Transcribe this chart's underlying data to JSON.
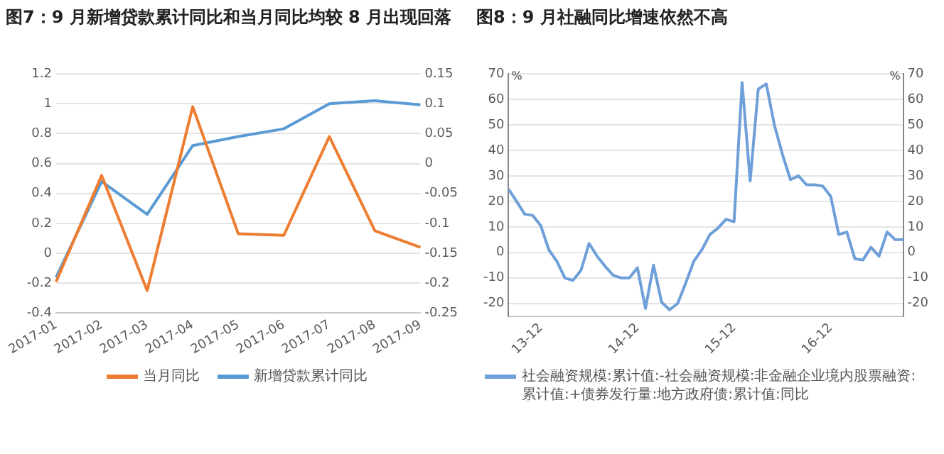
{
  "chart_data": [
    {
      "type": "line",
      "title": "图7：9 月新增贷款累计同比和当月同比均较 8 月出现回落",
      "categories": [
        "2017-01",
        "2017-02",
        "2017-03",
        "2017-04",
        "2017-05",
        "2017-06",
        "2017-07",
        "2017-08",
        "2017-09"
      ],
      "series": [
        {
          "name": "当月同比",
          "color": "#ed7d31",
          "values": [
            -0.19,
            0.52,
            -0.25,
            0.98,
            0.13,
            0.12,
            0.78,
            0.15,
            0.04
          ]
        },
        {
          "name": "新增贷款累计同比",
          "color": "#5b9bd5",
          "axis": "y2",
          "values": [
            -0.19,
            -0.03,
            -0.085,
            0.03,
            0.045,
            0.058,
            0.1,
            0.105,
            0.098
          ]
        }
      ],
      "ylim": [
        -0.4,
        1.2
      ],
      "yticks": [
        -0.4,
        -0.2,
        0,
        0.2,
        0.4,
        0.6,
        0.8,
        1,
        1.2
      ],
      "y2lim": [
        -0.25,
        0.15
      ],
      "y2ticks": [
        -0.25,
        -0.2,
        -0.15,
        -0.1,
        -0.05,
        0,
        0.05,
        0.1,
        0.15
      ],
      "grid": "y",
      "legend": "bottom",
      "marker": "none"
    },
    {
      "type": "line",
      "title": "图8：9 月社融同比增速依然不高",
      "ylabel": "%",
      "y2label": "%",
      "categories": [
        null,
        null,
        null,
        null,
        "13-12",
        null,
        null,
        null,
        null,
        null,
        null,
        null,
        null,
        null,
        null,
        null,
        "14-12",
        null,
        null,
        null,
        null,
        null,
        null,
        null,
        null,
        null,
        null,
        null,
        "15-12",
        null,
        null,
        null,
        null,
        null,
        null,
        null,
        null,
        null,
        null,
        null,
        "16-12",
        null,
        null,
        null,
        null,
        null,
        null,
        null,
        null,
        null
      ],
      "series": [
        {
          "name": "社会融资规模:累计值:-社会融资规模:非金融企业境内股票融资:累计值:+债券发行量:地方政府债:累计值:同比",
          "color": "#6f9fd8",
          "values": [
            24.8,
            20,
            15,
            14.5,
            10.5,
            1,
            -3.5,
            -10,
            -11,
            -7,
            3.5,
            -1.5,
            -5.5,
            -9,
            -10,
            -10,
            -6,
            -22,
            -5,
            -19.5,
            -22.5,
            -20,
            -12,
            -3.5,
            1,
            7,
            9.5,
            13,
            12,
            66.5,
            28,
            64,
            66,
            50,
            38.5,
            28.5,
            30,
            26.5,
            26.5,
            26,
            22,
            7,
            8,
            -2.5,
            -3,
            2,
            -1.5,
            8,
            5,
            5
          ]
        }
      ],
      "ylim": [
        -25,
        70
      ],
      "yticks": [
        -20,
        -10,
        0,
        10,
        20,
        30,
        40,
        50,
        60,
        70
      ],
      "y2lim": [
        -25,
        70
      ],
      "y2ticks": [
        -20,
        -10,
        0,
        10,
        20,
        30,
        40,
        50,
        60,
        70
      ],
      "grid": "y",
      "legend": "bottom",
      "marker": "none"
    }
  ]
}
